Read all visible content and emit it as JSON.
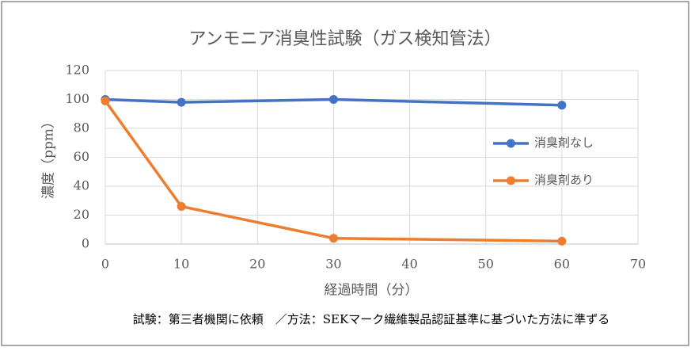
{
  "chart_data": {
    "type": "line",
    "title": "アンモニア消臭性試験（ガス検知管法）",
    "x_label": "経過時間（分）",
    "y_label": "濃度（ppm）",
    "note": "試験：第三者機関に依頼　／方法：SEKマーク繊維製品認証基準に基づいた方法に準ずる",
    "x": [
      0,
      10,
      30,
      60
    ],
    "series": [
      {
        "name": "消臭剤なし",
        "color": "#4472c4",
        "values": [
          100,
          98,
          100,
          96
        ]
      },
      {
        "name": "消臭剤あり",
        "color": "#ed7d31",
        "values": [
          99,
          26,
          4,
          2
        ]
      }
    ],
    "xlim": [
      0,
      70
    ],
    "xticks": [
      0,
      10,
      20,
      30,
      40,
      50,
      60,
      70
    ],
    "ylim": [
      0,
      120
    ],
    "yticks": [
      0,
      20,
      40,
      60,
      80,
      100,
      120
    ],
    "grid": true,
    "legend": "right"
  }
}
